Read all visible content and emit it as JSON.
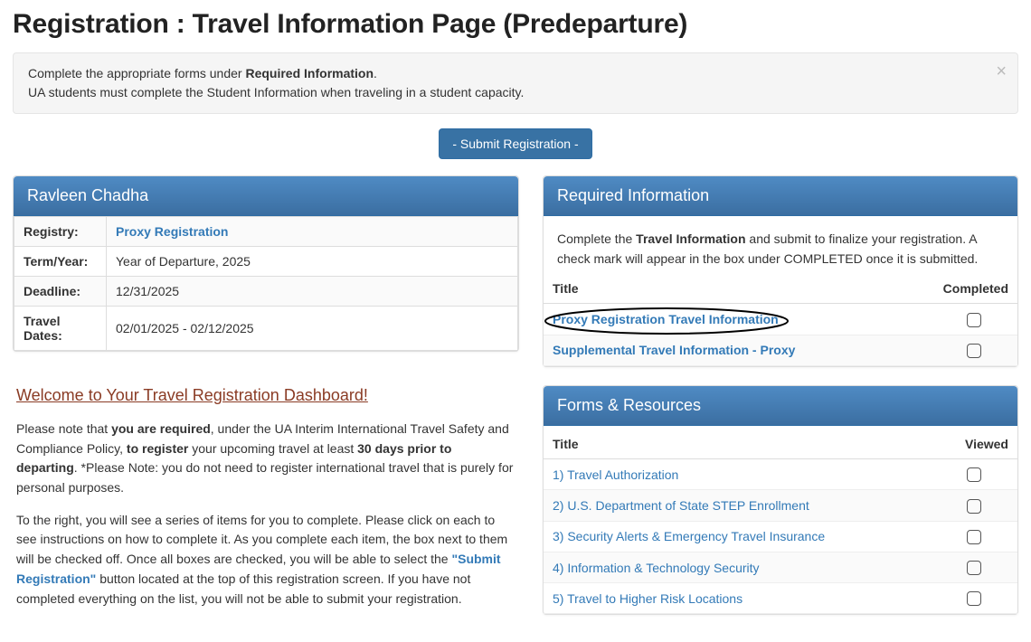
{
  "page": {
    "title": "Registration : Travel Information Page (Predeparture)"
  },
  "alert": {
    "line1_pre": "Complete the appropriate forms under ",
    "line1_bold": "Required Information",
    "line1_post": ".",
    "line2": "UA students must complete the Student Information when traveling in a student capacity."
  },
  "submit_button": "- Submit Registration -",
  "user_panel": {
    "heading": "Ravleen Chadha",
    "rows": {
      "registry_label": "Registry:",
      "registry_value": "Proxy Registration",
      "termyear_label": "Term/Year:",
      "termyear_value": "Year of Departure, 2025",
      "deadline_label": "Deadline:",
      "deadline_value": "12/31/2025",
      "travel_dates_label": "Travel Dates:",
      "travel_dates_value": "02/01/2025 - 02/12/2025"
    }
  },
  "dashboard": {
    "welcome": "Welcome to Your Travel Registration Dashboard!",
    "para1_pre": "Please note that ",
    "para1_bold1": "you are required",
    "para1_mid1": ", under the UA Interim International Travel Safety and Compliance Policy, ",
    "para1_bold2": "to register",
    "para1_mid2": " your upcoming travel at least ",
    "para1_bold3": "30 days prior to departing",
    "para1_post": ". *Please Note: you do not need to register international travel that is purely for personal purposes.",
    "para2_pre": "To the right, you will see a series of items for you to complete. Please click on each to see instructions on how to complete it. As you complete each item, the box next to them will be checked off. Once all boxes are checked, you will be able to select the ",
    "para2_bold": "\"Submit Registration\"",
    "para2_post": " button located at the top of this registration screen. If you have not completed everything on the list, you will not be able to submit your registration."
  },
  "required_info": {
    "heading": "Required Information",
    "intro_pre": "Complete the ",
    "intro_bold": "Travel Information",
    "intro_post": " and submit to finalize your registration. A check mark will appear in the box under COMPLETED once it is submitted.",
    "col_title": "Title",
    "col_completed": "Completed",
    "items": [
      {
        "label": "Proxy Registration Travel Information",
        "circled": true
      },
      {
        "label": "Supplemental Travel Information - Proxy",
        "circled": false
      }
    ]
  },
  "forms_resources": {
    "heading": "Forms & Resources",
    "col_title": "Title",
    "col_viewed": "Viewed",
    "items": [
      {
        "label": "1) Travel Authorization"
      },
      {
        "label": "2) U.S. Department of State STEP Enrollment"
      },
      {
        "label": "3) Security Alerts & Emergency Travel Insurance"
      },
      {
        "label": "4) Information & Technology Security"
      },
      {
        "label": "5) Travel to Higher Risk Locations"
      }
    ]
  },
  "colors": {
    "panel_header_top": "#4f8bc4",
    "panel_header_bottom": "#3b6ea1",
    "link": "#337ab7",
    "welcome": "#8a3b24",
    "button_bg": "#3872a4"
  }
}
